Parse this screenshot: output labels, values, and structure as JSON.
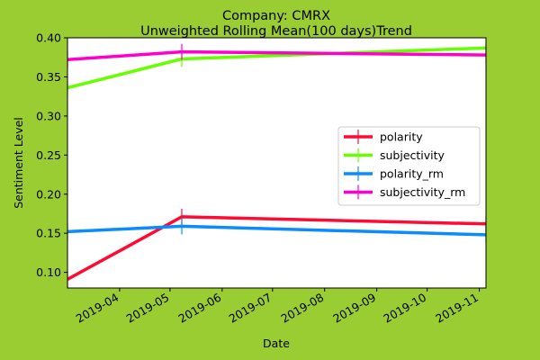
{
  "chart_data": {
    "type": "line",
    "title": "Company: CMRX",
    "subtitle": "Unweighted Rolling Mean(100 days)Trend",
    "xlabel": "Date",
    "ylabel": "Sentiment Level",
    "x": [
      "2019-03-01",
      "2019-05-08",
      "2019-11-05"
    ],
    "x_ticks": [
      "2019-04",
      "2019-05",
      "2019-06",
      "2019-07",
      "2019-08",
      "2019-09",
      "2019-10",
      "2019-11"
    ],
    "x_range": [
      "2019-03-01",
      "2019-11-05"
    ],
    "ylim": [
      0.08,
      0.4
    ],
    "y_ticks": [
      "0.10",
      "0.15",
      "0.20",
      "0.25",
      "0.30",
      "0.35",
      "0.40"
    ],
    "grid": false,
    "legend_position": "right",
    "series": [
      {
        "name": "polarity",
        "color": "#ff0a32",
        "values": [
          0.091,
          0.171,
          0.162
        ]
      },
      {
        "name": "subjectivity",
        "color": "#66ff00",
        "values": [
          0.336,
          0.373,
          0.387
        ]
      },
      {
        "name": "polarity_rm",
        "color": "#0a8cff",
        "values": [
          0.152,
          0.159,
          0.148
        ]
      },
      {
        "name": "subjectivity_rm",
        "color": "#ff00cc",
        "values": [
          0.372,
          0.382,
          0.378
        ]
      }
    ]
  }
}
